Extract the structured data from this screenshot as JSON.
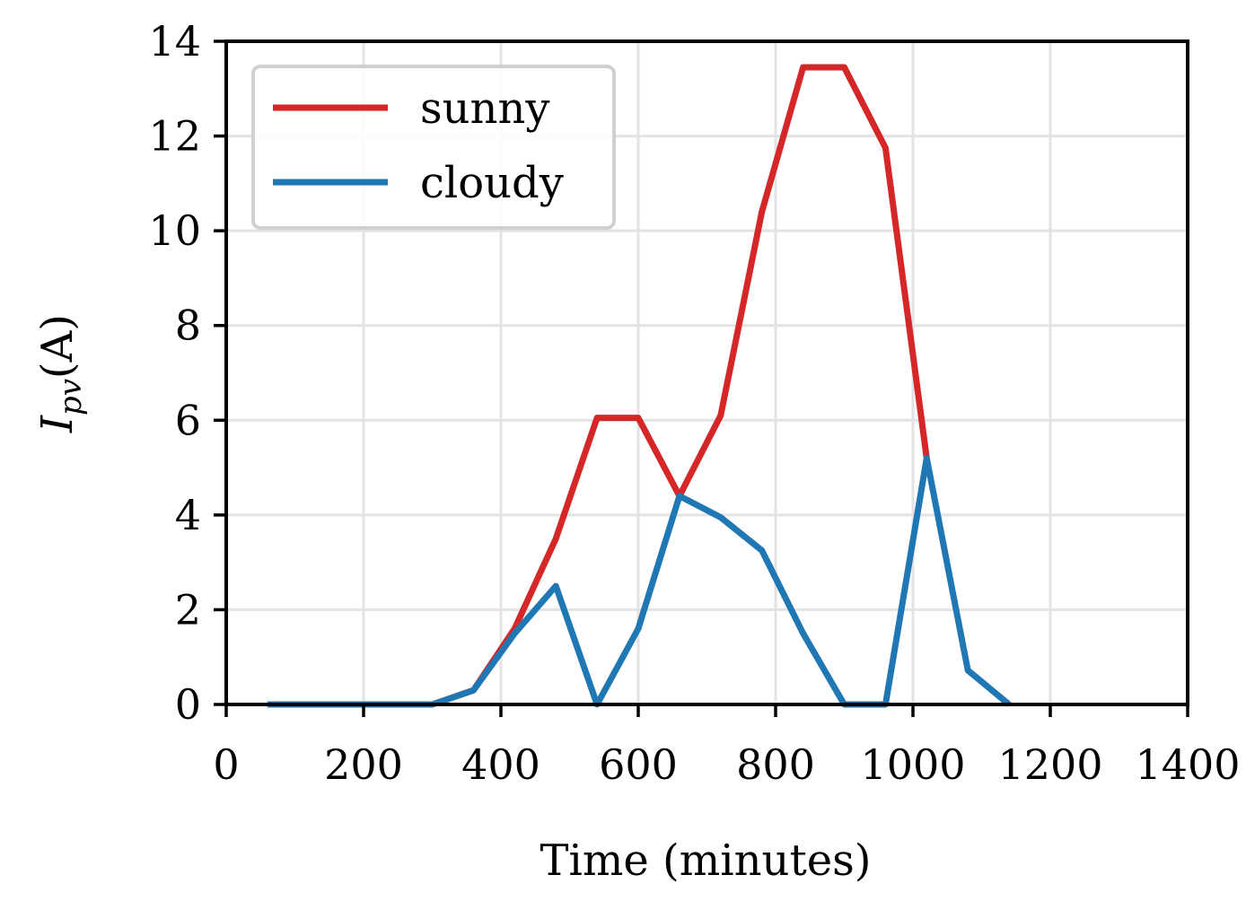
{
  "chart_data": {
    "type": "line",
    "xlabel": "Time (minutes)",
    "ylabel": {
      "main": "I",
      "subscript": "pv",
      "unit": "(A)"
    },
    "xlim": [
      0,
      1400
    ],
    "ylim": [
      0,
      14
    ],
    "xticks": [
      0,
      200,
      400,
      600,
      800,
      1000,
      1200,
      1400
    ],
    "yticks": [
      0,
      2,
      4,
      6,
      8,
      10,
      12,
      14
    ],
    "grid": true,
    "legend": {
      "position": "top-left"
    },
    "series": [
      {
        "name": "sunny",
        "color": "#d62728",
        "x": [
          60,
          120,
          180,
          240,
          300,
          360,
          420,
          480,
          540,
          600,
          660,
          720,
          780,
          840,
          900,
          960,
          1020
        ],
        "y": [
          0,
          0,
          0,
          0,
          0,
          0.3,
          1.6,
          3.5,
          6.05,
          6.05,
          4.4,
          6.1,
          10.4,
          13.45,
          13.45,
          11.75,
          5.2
        ]
      },
      {
        "name": "cloudy",
        "color": "#1f77b4",
        "x": [
          60,
          120,
          180,
          240,
          300,
          360,
          420,
          480,
          540,
          600,
          660,
          720,
          780,
          840,
          900,
          960,
          1020,
          1080,
          1140
        ],
        "y": [
          0,
          0,
          0,
          0,
          0,
          0.3,
          1.5,
          2.5,
          0,
          1.6,
          4.4,
          3.95,
          3.25,
          1.5,
          0,
          0,
          5.2,
          0.72,
          0
        ]
      }
    ]
  }
}
